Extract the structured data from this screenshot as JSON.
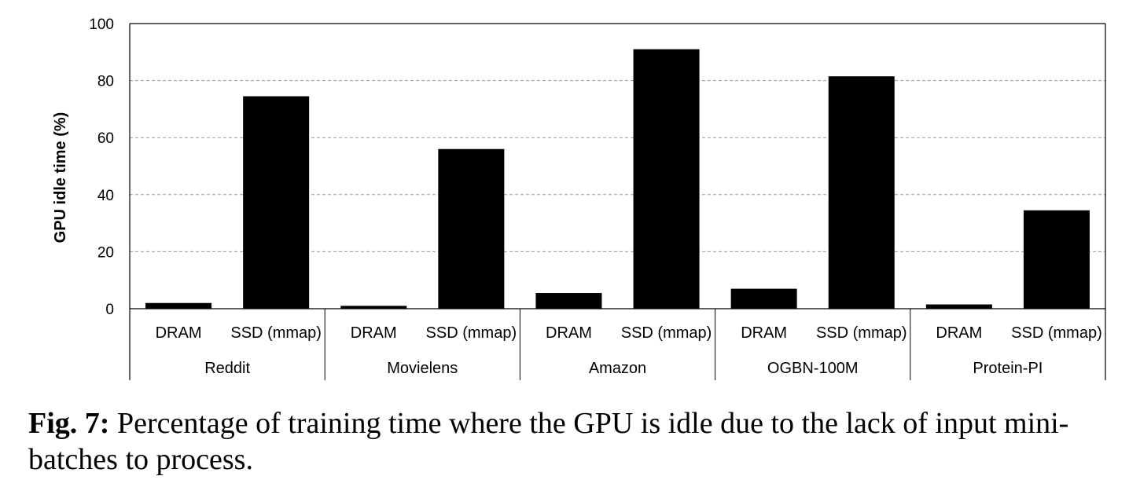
{
  "chart_data": {
    "type": "bar",
    "ylabel": "GPU idle time (%)",
    "ylim": [
      0,
      100
    ],
    "yticks": [
      0,
      20,
      40,
      60,
      80,
      100
    ],
    "grid": true,
    "groups": [
      {
        "name": "Reddit",
        "bars": [
          {
            "label": "DRAM",
            "value": 2
          },
          {
            "label": "SSD (mmap)",
            "value": 74.5
          }
        ]
      },
      {
        "name": "Movielens",
        "bars": [
          {
            "label": "DRAM",
            "value": 1
          },
          {
            "label": "SSD (mmap)",
            "value": 56
          }
        ]
      },
      {
        "name": "Amazon",
        "bars": [
          {
            "label": "DRAM",
            "value": 5.5
          },
          {
            "label": "SSD (mmap)",
            "value": 91
          }
        ]
      },
      {
        "name": "OGBN-100M",
        "bars": [
          {
            "label": "DRAM",
            "value": 7
          },
          {
            "label": "SSD (mmap)",
            "value": 81.5
          }
        ]
      },
      {
        "name": "Protein-PI",
        "bars": [
          {
            "label": "DRAM",
            "value": 1.5
          },
          {
            "label": "SSD (mmap)",
            "value": 34.5
          }
        ]
      }
    ],
    "bar_color": "#000000"
  },
  "caption": {
    "label": "Fig. 7:",
    "text": " Percentage of training time where the GPU is idle due to the lack of input mini-batches to process."
  }
}
